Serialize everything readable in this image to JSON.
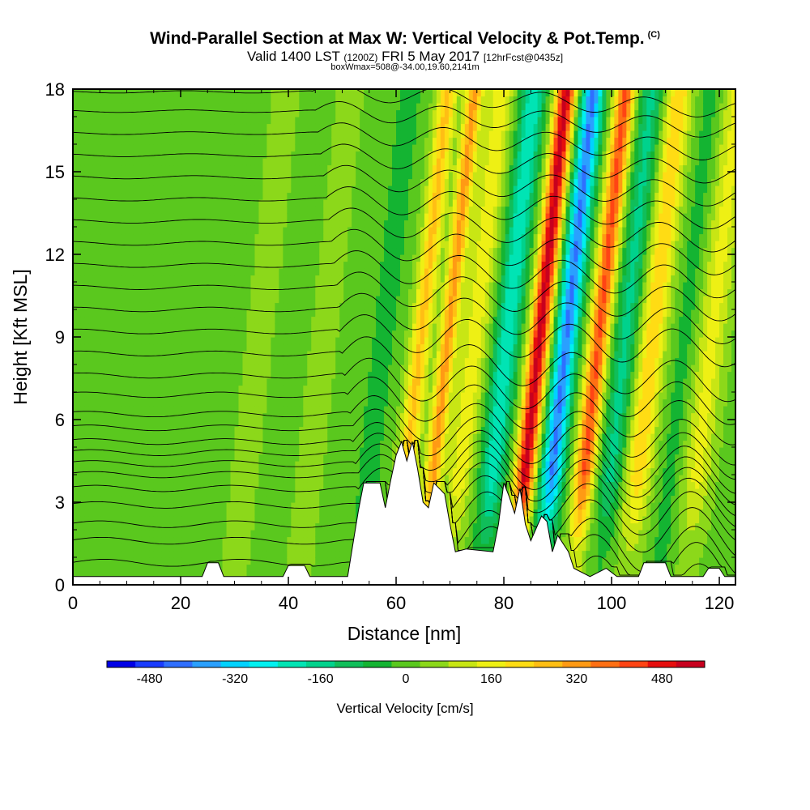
{
  "chart_data": {
    "type": "heatmap",
    "title": "Wind-Parallel Section at Max W: Vertical Velocity & Pot.Temp.",
    "title_mark": "(C)",
    "subtitle_main": "Valid 1400 LST",
    "subtitle_utc": "(1200Z)",
    "subtitle_date": "FRI 5 May 2017",
    "subtitle_fcst": "[12hrFcst@0435z]",
    "subtitle2": "boxWmax=508@-34.00,19.60,2141m",
    "xlabel": "Distance [nm]",
    "ylabel": "Height [Kft MSL]",
    "xlim": [
      0,
      123
    ],
    "ylim": [
      0,
      18
    ],
    "xticks": [
      "0",
      "20",
      "40",
      "60",
      "80",
      "100",
      "120"
    ],
    "yticks": [
      "0",
      "3",
      "6",
      "9",
      "12",
      "15",
      "18"
    ],
    "colorbar_label": "Vertical Velocity [cm/s]",
    "colorbar_ticks": [
      "-480",
      "-320",
      "-160",
      "0",
      "160",
      "320",
      "480"
    ],
    "colorbar_range": [
      -560,
      560
    ],
    "colorbar_colors": [
      "#0000e6",
      "#1a3cff",
      "#2f6fff",
      "#2aa0ff",
      "#00d2ff",
      "#00f0f0",
      "#00e4b4",
      "#00d28c",
      "#10be5a",
      "#14b432",
      "#5ac81e",
      "#8cd81a",
      "#c8e614",
      "#eef014",
      "#ffdc14",
      "#ffbe14",
      "#ff9a14",
      "#ff7014",
      "#ff4414",
      "#e60e0e",
      "#c8001e"
    ],
    "terrain": [
      [
        0,
        0.3
      ],
      [
        10,
        0.3
      ],
      [
        24,
        0.3
      ],
      [
        25,
        0.8
      ],
      [
        27,
        0.8
      ],
      [
        28,
        0.3
      ],
      [
        39,
        0.3
      ],
      [
        40,
        0.7
      ],
      [
        43,
        0.7
      ],
      [
        44,
        0.3
      ],
      [
        51,
        0.3
      ],
      [
        52,
        1.5
      ],
      [
        53,
        2.7
      ],
      [
        54,
        3.7
      ],
      [
        57,
        3.7
      ],
      [
        58,
        2.8
      ],
      [
        59,
        3.8
      ],
      [
        60,
        4.7
      ],
      [
        61,
        5.2
      ],
      [
        62,
        4.5
      ],
      [
        63,
        5.2
      ],
      [
        64,
        4.2
      ],
      [
        65,
        3.0
      ],
      [
        66,
        2.8
      ],
      [
        67,
        3.7
      ],
      [
        69,
        3.3
      ],
      [
        70,
        2.2
      ],
      [
        71,
        1.2
      ],
      [
        73,
        1.3
      ],
      [
        78,
        1.2
      ],
      [
        79,
        2.2
      ],
      [
        80,
        3.7
      ],
      [
        81,
        3.2
      ],
      [
        82,
        2.6
      ],
      [
        83,
        3.5
      ],
      [
        84,
        2.2
      ],
      [
        85,
        1.6
      ],
      [
        87,
        2.5
      ],
      [
        88,
        2.3
      ],
      [
        89,
        1.2
      ],
      [
        90,
        1.8
      ],
      [
        92,
        1.2
      ],
      [
        93,
        0.6
      ],
      [
        96,
        0.3
      ],
      [
        99,
        0.6
      ],
      [
        101,
        0.3
      ],
      [
        105,
        0.3
      ],
      [
        106,
        0.8
      ],
      [
        110,
        0.8
      ],
      [
        111,
        0.3
      ],
      [
        117,
        0.3
      ],
      [
        118,
        0.6
      ],
      [
        120,
        0.6
      ],
      [
        121,
        0.3
      ],
      [
        123,
        0.3
      ]
    ],
    "w_bands": [
      {
        "x": 63,
        "w": 1.8,
        "value": 240
      },
      {
        "x": 68,
        "w": 1.6,
        "value": 300
      },
      {
        "x": 73,
        "w": 2.2,
        "value": 160
      },
      {
        "x": 79,
        "w": 2.2,
        "value": -240
      },
      {
        "x": 85,
        "w": 1.8,
        "value": 520
      },
      {
        "x": 90,
        "w": 2.0,
        "value": -420
      },
      {
        "x": 96,
        "w": 1.8,
        "value": 400
      },
      {
        "x": 101,
        "w": 2.2,
        "value": -160
      },
      {
        "x": 106,
        "w": 2.4,
        "value": 220
      },
      {
        "x": 112,
        "w": 2.0,
        "value": -60
      },
      {
        "x": 117,
        "w": 2.6,
        "value": 140
      },
      {
        "x": 8,
        "w": 2.5,
        "value": -30
      },
      {
        "x": 21,
        "w": 2.5,
        "value": -25
      },
      {
        "x": 33,
        "w": 3.0,
        "value": 30
      },
      {
        "x": 45,
        "w": 2.5,
        "value": 40
      },
      {
        "x": 56,
        "w": 2.0,
        "value": -90
      }
    ],
    "theta_levels": [
      0.8,
      1.6,
      2.2,
      2.9,
      3.5,
      4.0,
      4.4,
      4.8,
      5.2,
      5.7,
      6.2,
      6.9,
      7.6,
      8.4,
      9.2,
      10.0,
      10.8,
      11.6,
      12.4,
      13.2,
      14.0,
      14.8,
      15.6,
      16.4,
      17.2,
      17.9
    ]
  }
}
